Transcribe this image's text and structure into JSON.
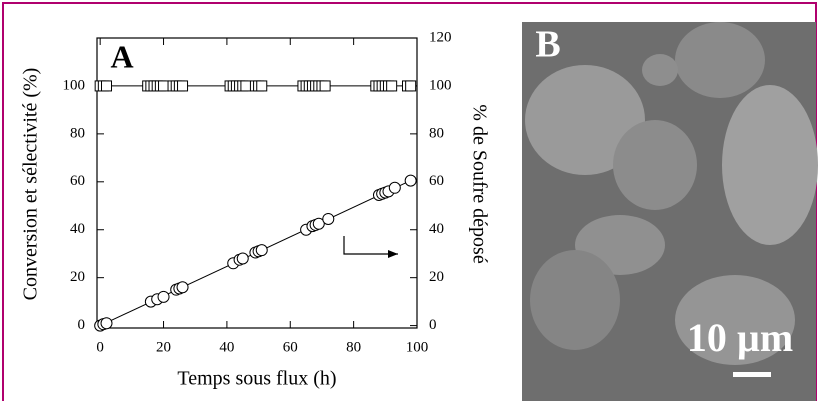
{
  "chart_data": {
    "type": "scatter",
    "annotation": "A",
    "x_label": "Temps sous flux (h)",
    "y_label": "Conversion et sélectivité (%)",
    "y2_label": "% de Soufre déposé",
    "xlim": [
      -1,
      100
    ],
    "xticks": [
      0,
      20,
      40,
      60,
      80,
      100
    ],
    "ylim": [
      -1,
      120
    ],
    "yticks": [
      0,
      20,
      40,
      60,
      80,
      100
    ],
    "y2lim": [
      -1,
      120
    ],
    "y2ticks": [
      0,
      20,
      40,
      60,
      80,
      100,
      120
    ],
    "series": [
      {
        "marker": "square",
        "color": "#000000",
        "x": [
          0,
          1,
          2,
          15,
          16,
          17,
          18,
          19,
          20,
          23,
          24,
          25,
          26,
          41,
          42,
          43,
          44,
          45,
          46,
          49,
          50,
          51,
          64,
          65,
          66,
          67,
          68,
          69,
          70,
          71,
          87,
          88,
          89,
          90,
          91,
          92,
          97,
          98
        ],
        "values": [
          100,
          100,
          100,
          100,
          100,
          100,
          100,
          100,
          100,
          100,
          100,
          100,
          100,
          100,
          100,
          100,
          100,
          100,
          100,
          100,
          100,
          100,
          100,
          100,
          100,
          100,
          100,
          100,
          100,
          100,
          100,
          100,
          100,
          100,
          100,
          100,
          100,
          100
        ]
      },
      {
        "marker": "circle",
        "color": "#000000",
        "axis": "y2",
        "x": [
          0,
          1,
          2,
          16,
          18,
          20,
          24,
          25,
          26,
          42,
          44,
          45,
          49,
          50,
          51,
          65,
          67,
          68,
          69,
          72,
          88,
          89,
          90,
          91,
          93,
          98
        ],
        "values": [
          0,
          0.6,
          1,
          10,
          11,
          12,
          15,
          15.5,
          16,
          26,
          27.5,
          28,
          30.5,
          31,
          31.5,
          40,
          41.5,
          42,
          42.5,
          44.5,
          54.5,
          55,
          55.5,
          56,
          57.5,
          60.5
        ]
      }
    ],
    "fit_lines": [
      {
        "x": [
          -1,
          100
        ],
        "values": [
          100,
          100
        ]
      },
      {
        "x": [
          0,
          98
        ],
        "values": [
          0,
          60.5
        ],
        "axis": "y2"
      }
    ]
  },
  "image_panel": {
    "label": "B",
    "scale": "10 µm"
  }
}
